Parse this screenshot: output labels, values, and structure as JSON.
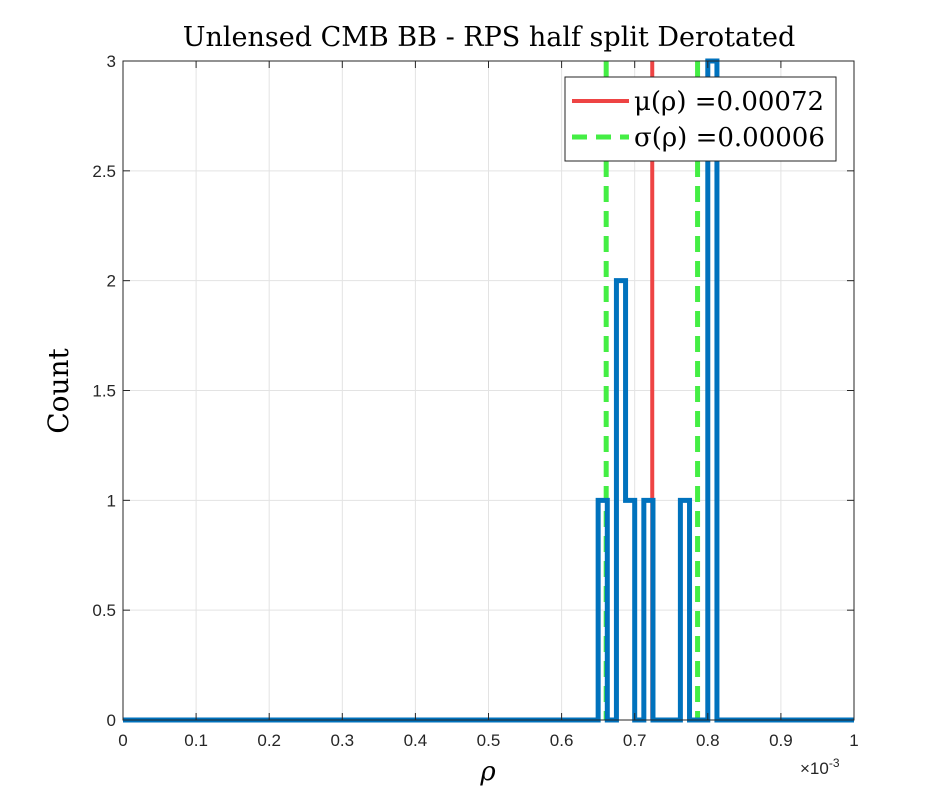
{
  "chart_data": {
    "type": "histogram",
    "title": "Unlensed CMB BB - RPS half split Derotated",
    "xlabel": "ρ",
    "ylabel": "Count",
    "xlim": [
      0,
      0.001
    ],
    "ylim": [
      0,
      3
    ],
    "x_exponent_label": "×10",
    "x_exponent_power": "-3",
    "xticks": [
      0,
      0.0001,
      0.0002,
      0.0003,
      0.0004,
      0.0005,
      0.0006,
      0.0007,
      0.0008,
      0.0009,
      0.001
    ],
    "xtick_labels": [
      "0",
      "0.1",
      "0.2",
      "0.3",
      "0.4",
      "0.5",
      "0.6",
      "0.7",
      "0.8",
      "0.9",
      "1"
    ],
    "yticks": [
      0,
      0.5,
      1,
      1.5,
      2,
      2.5,
      3
    ],
    "ytick_labels": [
      "0",
      "0.5",
      "1",
      "1.5",
      "2",
      "2.5",
      "3"
    ],
    "grid": true,
    "histogram": {
      "color": "#0072BD",
      "bin_width": 1.25e-05,
      "bins": [
        {
          "left": 0.00065,
          "count": 1
        },
        {
          "left": 0.0006625,
          "count": 0
        },
        {
          "left": 0.000675,
          "count": 2
        },
        {
          "left": 0.0006875,
          "count": 1
        },
        {
          "left": 0.0007,
          "count": 0
        },
        {
          "left": 0.0007125,
          "count": 1
        },
        {
          "left": 0.000725,
          "count": 0
        },
        {
          "left": 0.0007375,
          "count": 0
        },
        {
          "left": 0.00075,
          "count": 0
        },
        {
          "left": 0.0007625,
          "count": 1
        },
        {
          "left": 0.000775,
          "count": 0
        },
        {
          "left": 0.0007875,
          "count": 0
        },
        {
          "left": 0.0008,
          "count": 3
        }
      ]
    },
    "mean_line": {
      "x": 0.000724,
      "color": "#EE4444"
    },
    "sigma_lines": {
      "x": [
        0.000661,
        0.000786
      ],
      "color": "#44EE44"
    },
    "legend": {
      "position": "top-right",
      "entries": [
        {
          "label": "μ(ρ) =0.00072",
          "style": "solid",
          "color": "#EE4444"
        },
        {
          "label": "σ(ρ) =0.00006",
          "style": "dashed",
          "color": "#44EE44"
        }
      ]
    }
  }
}
